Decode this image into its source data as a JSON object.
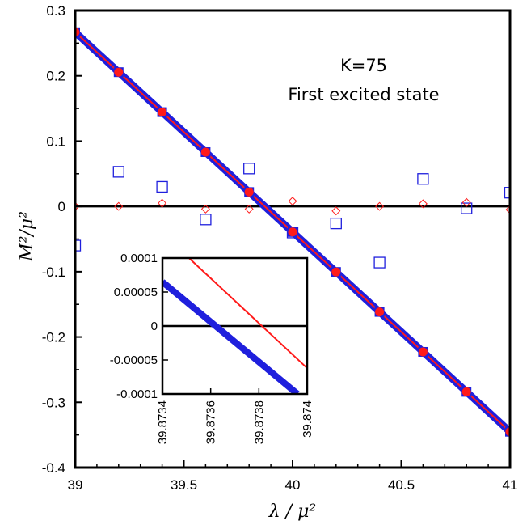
{
  "chart_data": [
    {
      "type": "scatter",
      "xlabel": "λ / μ²",
      "ylabel": "M²/μ²",
      "xlim": [
        39,
        41
      ],
      "ylim": [
        -0.4,
        0.3
      ],
      "xticks": [
        "39",
        "39.5",
        "40",
        "40.5",
        "41"
      ],
      "yticks": [
        "0.3",
        "0.2",
        "0.1",
        "0",
        "-0.1",
        "-0.2",
        "-0.3",
        "-0.4"
      ],
      "annotations": [
        "K=75",
        "First excited state"
      ],
      "grid": false,
      "zero_line": true,
      "series": [
        {
          "marker": "line",
          "color": "#1f1fdd",
          "x": [
            39.0,
            41.0
          ],
          "y": [
            0.2668,
            -0.3451
          ]
        },
        {
          "marker": "line",
          "color": "#ff1a1a",
          "x": [
            39.0,
            41.0
          ],
          "y": [
            0.2668,
            -0.3451
          ]
        },
        {
          "marker": "square-filled",
          "color": "#1f1fdd",
          "x": [
            39.0,
            39.2,
            39.4,
            39.6,
            39.8,
            40.0,
            40.2,
            40.4,
            40.6,
            40.8,
            41.0
          ],
          "y": [
            0.2668,
            0.2056,
            0.1444,
            0.0832,
            0.022,
            -0.0392,
            -0.1004,
            -0.1616,
            -0.2228,
            -0.284,
            -0.3451
          ]
        },
        {
          "marker": "circle-filled",
          "color": "#ff1a1a",
          "x": [
            39.0,
            39.2,
            39.4,
            39.6,
            39.8,
            40.0,
            40.2,
            40.4,
            40.6,
            40.8,
            41.0
          ],
          "y": [
            0.2668,
            0.2056,
            0.1444,
            0.0832,
            0.022,
            -0.0392,
            -0.1004,
            -0.1616,
            -0.2228,
            -0.284,
            -0.3451
          ]
        },
        {
          "marker": "square-open",
          "color": "#1f1fdd",
          "x": [
            39.0,
            39.2,
            39.4,
            39.6,
            39.8,
            40.0,
            40.2,
            40.4,
            40.6,
            40.8,
            41.0
          ],
          "y": [
            -0.06,
            0.053,
            0.03,
            -0.02,
            0.058,
            -0.04,
            -0.026,
            -0.086,
            0.042,
            -0.003,
            0.021
          ]
        },
        {
          "marker": "diamond-open",
          "color": "#ff1a1a",
          "x": [
            39.0,
            39.2,
            39.4,
            39.6,
            39.8,
            40.0,
            40.2,
            40.4,
            40.6,
            40.8,
            41.0
          ],
          "y": [
            0.0,
            0.0,
            0.005,
            -0.004,
            -0.004,
            0.008,
            -0.007,
            0.0,
            0.004,
            0.006,
            -0.005
          ]
        }
      ]
    },
    {
      "type": "line",
      "xlim": [
        39.8734,
        39.874
      ],
      "ylim": [
        -0.0001,
        0.0001
      ],
      "xticks": [
        "39.8734",
        "39.8736",
        "39.8738",
        "39.874"
      ],
      "yticks": [
        "0.0001",
        "0.00005",
        "0",
        "-0.00005",
        "-0.0001"
      ],
      "zero_line": true,
      "series": [
        {
          "marker": "line-thick",
          "color": "#1f1fdd",
          "x": [
            39.8734,
            39.87396
          ],
          "y": [
            6.5e-05,
            -0.0001
          ]
        },
        {
          "marker": "line",
          "color": "#ff1a1a",
          "x": [
            39.87351,
            39.874
          ],
          "y": [
            0.0001,
            -6.2e-05
          ]
        }
      ]
    }
  ]
}
